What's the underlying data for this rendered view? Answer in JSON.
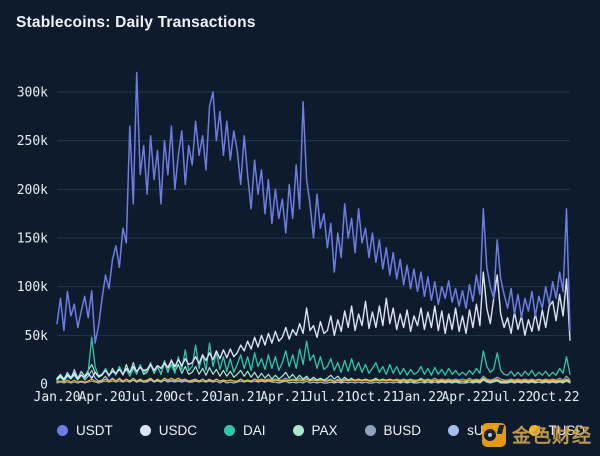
{
  "page": {
    "title": "Stablecoins: Daily Transactions",
    "background": "#0e1b2c"
  },
  "watermark": {
    "text": "金色财经",
    "text_color": "#c9a152",
    "icon_color": "#f2a60e"
  },
  "chart_data": {
    "type": "line",
    "title": "Stablecoins: Daily Transactions",
    "xlabel": "",
    "ylabel": "",
    "value_unit": "thousands of daily transactions",
    "x_unit": "weeks since Jan 2020",
    "ylim": [
      0,
      320
    ],
    "grid": "horizontal",
    "grid_color": "#22374e",
    "axis_text_color": "#e8edf4",
    "legend_position": "bottom",
    "y_ticks": [
      {
        "value": 0,
        "label": "0"
      },
      {
        "value": 50,
        "label": "50k"
      },
      {
        "value": 100,
        "label": "100k"
      },
      {
        "value": 150,
        "label": "150k"
      },
      {
        "value": 200,
        "label": "200k"
      },
      {
        "value": 250,
        "label": "250k"
      },
      {
        "value": 300,
        "label": "300k"
      }
    ],
    "x_ticks": [
      {
        "week": 0,
        "label": "Jan.20"
      },
      {
        "week": 13,
        "label": "Apr.20"
      },
      {
        "week": 26.1,
        "label": "Jul.20"
      },
      {
        "week": 39.4,
        "label": "Oct.20"
      },
      {
        "week": 52.5,
        "label": "Jan.21"
      },
      {
        "week": 65.4,
        "label": "Apr.21"
      },
      {
        "week": 78.4,
        "label": "Jul.21"
      },
      {
        "week": 91.8,
        "label": "Oct.21"
      },
      {
        "week": 104.8,
        "label": "Jan.22"
      },
      {
        "week": 117.7,
        "label": "Apr.22"
      },
      {
        "week": 130.7,
        "label": "Jul.22"
      },
      {
        "week": 144,
        "label": "Oct.22"
      }
    ],
    "draw_order": [
      "BUSD",
      "sUSD",
      "PAX",
      "TUSD",
      "DAI",
      "USDC",
      "USDT"
    ],
    "series": [
      {
        "name": "USDT",
        "color": "#6e7ce4",
        "width": 1.5,
        "values": [
          62,
          88,
          55,
          95,
          70,
          82,
          58,
          75,
          90,
          68,
          96,
          42,
          60,
          88,
          112,
          98,
          128,
          142,
          120,
          160,
          145,
          265,
          185,
          320,
          215,
          245,
          195,
          255,
          210,
          240,
          185,
          250,
          215,
          265,
          200,
          235,
          260,
          205,
          245,
          225,
          270,
          235,
          255,
          220,
          285,
          300,
          250,
          280,
          235,
          270,
          230,
          260,
          240,
          205,
          255,
          215,
          180,
          230,
          195,
          220,
          175,
          210,
          165,
          200,
          170,
          190,
          155,
          205,
          170,
          225,
          180,
          290,
          210,
          185,
          150,
          195,
          160,
          175,
          140,
          165,
          115,
          155,
          130,
          185,
          150,
          170,
          135,
          180,
          145,
          160,
          130,
          155,
          125,
          148,
          118,
          140,
          112,
          135,
          108,
          128,
          102,
          122,
          98,
          118,
          95,
          115,
          90,
          110,
          86,
          105,
          82,
          100,
          88,
          106,
          84,
          98,
          80,
          96,
          78,
          102,
          85,
          112,
          92,
          180,
          120,
          100,
          88,
          148,
          108,
          92,
          78,
          98,
          72,
          92,
          68,
          88,
          75,
          95,
          70,
          90,
          78,
          100,
          82,
          105,
          88,
          115,
          95,
          180,
          55
        ]
      },
      {
        "name": "USDC",
        "color": "#dce3f8",
        "width": 1.4,
        "values": [
          5,
          8,
          4,
          9,
          6,
          10,
          5,
          9,
          7,
          11,
          6,
          12,
          8,
          10,
          14,
          9,
          13,
          11,
          15,
          10,
          16,
          12,
          18,
          13,
          17,
          14,
          15,
          20,
          14,
          19,
          16,
          22,
          17,
          24,
          18,
          25,
          19,
          26,
          20,
          22,
          28,
          21,
          30,
          24,
          32,
          25,
          34,
          26,
          35,
          27,
          36,
          28,
          32,
          40,
          34,
          44,
          36,
          48,
          38,
          50,
          40,
          52,
          42,
          54,
          44,
          48,
          58,
          46,
          56,
          50,
          62,
          52,
          78,
          55,
          60,
          48,
          64,
          52,
          55,
          70,
          50,
          66,
          54,
          75,
          58,
          80,
          55,
          72,
          60,
          85,
          57,
          74,
          58,
          80,
          60,
          88,
          62,
          78,
          56,
          72,
          58,
          76,
          54,
          70,
          60,
          78,
          56,
          74,
          58,
          80,
          55,
          75,
          52,
          72,
          56,
          78,
          54,
          70,
          52,
          76,
          58,
          82,
          60,
          115,
          78,
          62,
          88,
          112,
          72,
          58,
          68,
          52,
          74,
          56,
          70,
          50,
          66,
          54,
          72,
          55,
          76,
          58,
          80,
          85,
          65,
          92,
          70,
          108,
          45
        ]
      },
      {
        "name": "DAI",
        "color": "#2fc6ac",
        "width": 1.3,
        "values": [
          4,
          7,
          3,
          8,
          5,
          9,
          4,
          10,
          6,
          12,
          48,
          18,
          8,
          10,
          16,
          8,
          14,
          9,
          18,
          10,
          15,
          8,
          16,
          10,
          20,
          12,
          14,
          22,
          12,
          18,
          10,
          24,
          13,
          20,
          11,
          28,
          15,
          35,
          14,
          18,
          40,
          16,
          30,
          14,
          42,
          18,
          32,
          15,
          28,
          13,
          26,
          12,
          20,
          30,
          16,
          28,
          14,
          32,
          18,
          26,
          15,
          30,
          16,
          28,
          14,
          22,
          34,
          18,
          30,
          16,
          36,
          20,
          44,
          24,
          30,
          16,
          28,
          15,
          18,
          26,
          14,
          22,
          12,
          24,
          13,
          26,
          14,
          22,
          12,
          20,
          11,
          16,
          22,
          12,
          18,
          10,
          20,
          11,
          18,
          10,
          16,
          9,
          15,
          10,
          12,
          18,
          10,
          16,
          9,
          17,
          10,
          15,
          9,
          16,
          10,
          14,
          9,
          12,
          9,
          14,
          10,
          16,
          11,
          34,
          18,
          12,
          15,
          32,
          14,
          10,
          9,
          13,
          8,
          12,
          8,
          13,
          9,
          14,
          8,
          12,
          9,
          13,
          8,
          12,
          9,
          16,
          11,
          28,
          10
        ]
      },
      {
        "name": "PAX",
        "color": "#abe9cd",
        "width": 1.2,
        "values": [
          6,
          10,
          5,
          11,
          7,
          12,
          6,
          13,
          8,
          14,
          20,
          12,
          7,
          9,
          15,
          8,
          16,
          10,
          18,
          9,
          20,
          11,
          22,
          12,
          19,
          10,
          12,
          20,
          11,
          18,
          10,
          22,
          12,
          25,
          13,
          20,
          11,
          18,
          10,
          12,
          18,
          10,
          16,
          9,
          17,
          10,
          15,
          8,
          14,
          8,
          13,
          7,
          10,
          14,
          8,
          13,
          7,
          12,
          6,
          11,
          6,
          10,
          5,
          9,
          5,
          8,
          12,
          6,
          10,
          5,
          9,
          5,
          8,
          4,
          7,
          4,
          6,
          4,
          6,
          9,
          5,
          8,
          4,
          7,
          4,
          6,
          3,
          5,
          3,
          5,
          3,
          4,
          6,
          3,
          5,
          3,
          5,
          3,
          4,
          2,
          4,
          2,
          4,
          2,
          3,
          5,
          2,
          4,
          2,
          4,
          2,
          3,
          2,
          3,
          2,
          3,
          2,
          3,
          2,
          4,
          2,
          3,
          2,
          5,
          3,
          2,
          3,
          4,
          2,
          2,
          2,
          3,
          2,
          3,
          2,
          3,
          2,
          3,
          2,
          2,
          2,
          3,
          2,
          3,
          2,
          3,
          2,
          4,
          2
        ]
      },
      {
        "name": "BUSD",
        "color": "#91a2bd",
        "width": 1.2,
        "values": [
          1,
          2,
          1,
          2,
          1,
          2,
          1,
          2,
          1,
          2,
          3,
          2,
          1,
          2,
          3,
          2,
          3,
          2,
          3,
          2,
          3,
          2,
          4,
          2,
          3,
          2,
          2,
          4,
          2,
          3,
          2,
          4,
          3,
          4,
          3,
          4,
          3,
          4,
          3,
          3,
          4,
          3,
          5,
          3,
          4,
          3,
          5,
          3,
          4,
          3,
          4,
          3,
          3,
          5,
          3,
          4,
          3,
          5,
          4,
          5,
          4,
          5,
          4,
          5,
          4,
          4,
          6,
          4,
          5,
          4,
          6,
          4,
          7,
          4,
          5,
          4,
          5,
          4,
          4,
          5,
          3,
          5,
          3,
          5,
          4,
          5,
          4,
          5,
          4,
          5,
          4,
          4,
          5,
          4,
          5,
          4,
          5,
          4,
          5,
          4,
          5,
          4,
          5,
          4,
          4,
          6,
          4,
          5,
          4,
          6,
          4,
          5,
          4,
          5,
          4,
          5,
          4,
          5,
          4,
          6,
          4,
          5,
          4,
          8,
          5,
          4,
          5,
          7,
          5,
          4,
          4,
          5,
          4,
          5,
          4,
          5,
          4,
          5,
          4,
          5,
          4,
          5,
          4,
          5,
          4,
          6,
          4,
          8,
          4
        ]
      },
      {
        "name": "sUSD",
        "color": "#a3bfec",
        "width": 1.2,
        "values": [
          3,
          8,
          4,
          12,
          5,
          15,
          6,
          10,
          4,
          8,
          14,
          6,
          3,
          4,
          8,
          3,
          6,
          3,
          5,
          2,
          5,
          2,
          4,
          2,
          4,
          2,
          3,
          5,
          2,
          4,
          2,
          4,
          2,
          3,
          2,
          3,
          2,
          3,
          2,
          2,
          3,
          2,
          3,
          2,
          3,
          2,
          3,
          1,
          3,
          1,
          2,
          1,
          2,
          3,
          2,
          3,
          2,
          3,
          2,
          3,
          2,
          3,
          2,
          2,
          1,
          2,
          3,
          1,
          2,
          1,
          2,
          1,
          3,
          1,
          2,
          1,
          2,
          1,
          1,
          2,
          1,
          2,
          1,
          2,
          1,
          2,
          1,
          2,
          1,
          2,
          1,
          1,
          2,
          1,
          2,
          1,
          2,
          1,
          2,
          1,
          2,
          1,
          2,
          1,
          1,
          2,
          1,
          2,
          1,
          2,
          1,
          2,
          1,
          2,
          1,
          2,
          1,
          1,
          1,
          2,
          1,
          2,
          1,
          4,
          2,
          1,
          2,
          3,
          1,
          1,
          1,
          2,
          1,
          2,
          1,
          2,
          1,
          2,
          1,
          2,
          1,
          2,
          1,
          2,
          1,
          2,
          1,
          3,
          1
        ]
      },
      {
        "name": "TUSD",
        "color": "#f3b824",
        "width": 1.2,
        "values": [
          2,
          3,
          2,
          4,
          2,
          4,
          2,
          3,
          2,
          3,
          5,
          3,
          2,
          3,
          5,
          3,
          5,
          3,
          6,
          3,
          5,
          3,
          6,
          3,
          5,
          3,
          4,
          6,
          3,
          5,
          3,
          6,
          4,
          6,
          4,
          6,
          4,
          5,
          3,
          4,
          5,
          3,
          5,
          3,
          5,
          3,
          5,
          3,
          4,
          3,
          4,
          3,
          3,
          5,
          3,
          4,
          3,
          5,
          3,
          4,
          3,
          4,
          3,
          4,
          3,
          3,
          4,
          3,
          4,
          3,
          4,
          3,
          5,
          3,
          4,
          3,
          4,
          3,
          3,
          4,
          2,
          4,
          2,
          4,
          3,
          4,
          3,
          4,
          3,
          4,
          3,
          3,
          4,
          3,
          4,
          3,
          4,
          3,
          4,
          3,
          4,
          3,
          4,
          3,
          3,
          4,
          3,
          4,
          3,
          4,
          3,
          4,
          3,
          4,
          3,
          4,
          3,
          3,
          3,
          4,
          3,
          4,
          3,
          6,
          4,
          3,
          4,
          5,
          3,
          3,
          3,
          4,
          3,
          4,
          3,
          4,
          3,
          4,
          3,
          4,
          3,
          4,
          3,
          4,
          3,
          4,
          3,
          5,
          3
        ]
      }
    ],
    "legend": [
      "USDT",
      "USDC",
      "DAI",
      "PAX",
      "BUSD",
      "sUSD",
      "TUSD"
    ]
  }
}
